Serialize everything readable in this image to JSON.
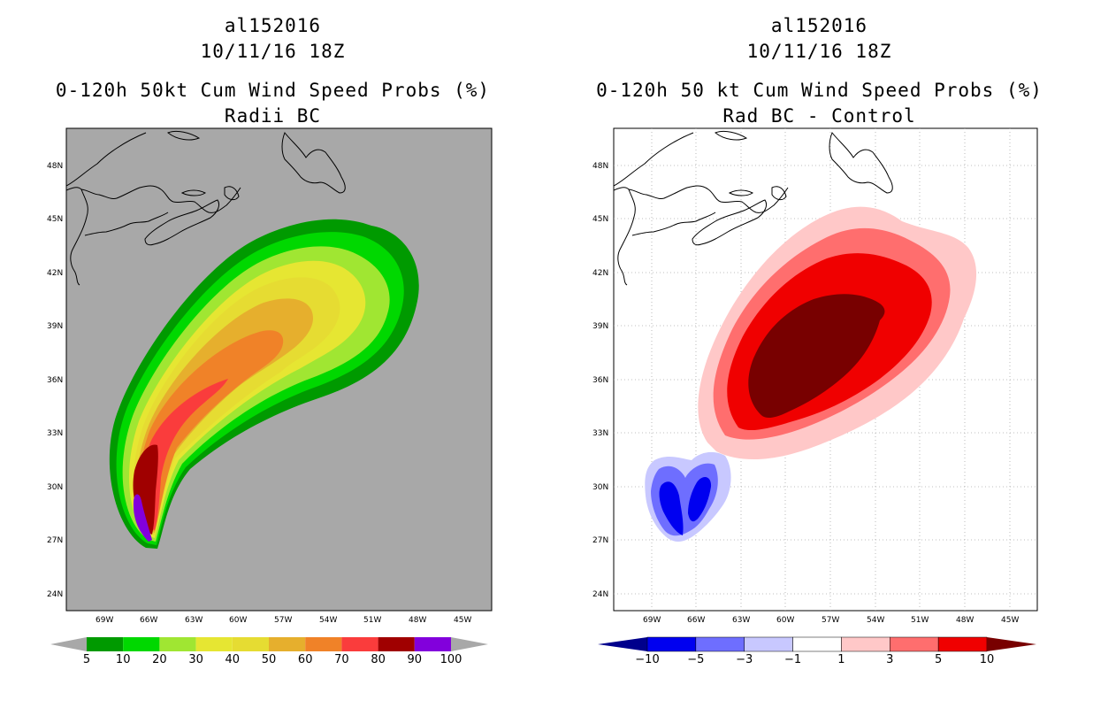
{
  "left": {
    "storm_id": "al152016",
    "date": "10/11/16 18Z",
    "title": "0-120h 50kt Cum Wind Speed Probs (%)",
    "subtitle": "Radii BC",
    "background_color": "#a8a8a8",
    "colorbar": {
      "labels": [
        "5",
        "10",
        "20",
        "30",
        "40",
        "50",
        "60",
        "70",
        "80",
        "90",
        "100"
      ],
      "colors": [
        "#009a00",
        "#00d800",
        "#a0e632",
        "#e6e632",
        "#e6dc32",
        "#e6af2d",
        "#f08228",
        "#fa3c3c",
        "#a00000",
        "#8200dc"
      ],
      "extend_color": "#a8a8a8"
    }
  },
  "right": {
    "storm_id": "al152016",
    "date": "10/11/16 18Z",
    "title": "0-120h 50 kt Cum Wind Speed Probs (%)",
    "subtitle": "Rad BC - Control",
    "background_color": "#ffffff",
    "colorbar": {
      "labels": [
        "-10",
        "-5",
        "-3",
        "-1",
        "1",
        "3",
        "5",
        "10"
      ],
      "colors": [
        "#00008c",
        "#0000f0",
        "#6e6eff",
        "#c8c8ff",
        "#ffffff",
        "#ffc8c8",
        "#ff6e6e",
        "#f00000",
        "#780000"
      ]
    }
  },
  "map": {
    "lat_labels": [
      "48N",
      "45N",
      "42N",
      "39N",
      "36N",
      "33N",
      "30N",
      "27N",
      "24N"
    ],
    "lon_labels": [
      "69W",
      "66W",
      "63W",
      "60W",
      "57W",
      "54W",
      "51W",
      "48W",
      "45W"
    ]
  },
  "chart_data": [
    {
      "type": "heatmap",
      "title": "0-120h 50kt Cum Wind Speed Probs (%)",
      "subtitle": "Radii BC",
      "units": "%",
      "levels": [
        5,
        10,
        20,
        30,
        40,
        50,
        60,
        70,
        80,
        90,
        100
      ],
      "lon_range": [
        -72.5,
        -43.5
      ],
      "lat_range": [
        23,
        50
      ],
      "approx_max_probability_region": {
        "lon": -66.8,
        "lat": 28.0,
        "value_range": "90-100"
      },
      "storm_track_start": {
        "lon": -66.2,
        "lat": 27.0
      }
    },
    {
      "type": "heatmap",
      "title": "0-120h 50 kt Cum Wind Speed Probs (%)",
      "subtitle": "Rad BC - Control",
      "units": "%",
      "levels": [
        -10,
        -5,
        -3,
        -1,
        1,
        3,
        5,
        10
      ],
      "lon_range": [
        -72.5,
        -43.5
      ],
      "lat_range": [
        23,
        50
      ],
      "positive_max_region": {
        "lon": -57.5,
        "lat": 37.5,
        "value": ">10"
      },
      "negative_min_region": {
        "lon": -67.5,
        "lat": 29.5,
        "value": "-10 to -5"
      }
    }
  ]
}
